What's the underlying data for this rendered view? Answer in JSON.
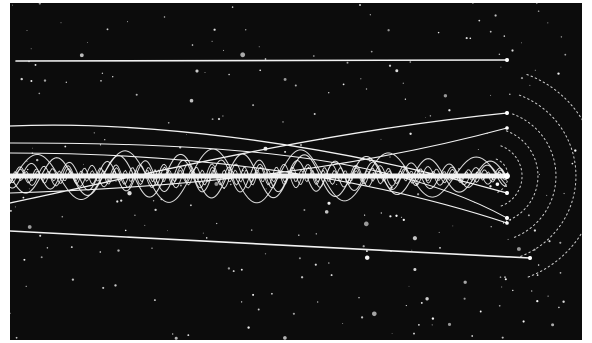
{
  "image": {
    "subject": "star-field-photograph",
    "colors": {
      "background": "#0c0c0c",
      "trails": "#f2f2f2",
      "stars": "#ffffff"
    }
  }
}
